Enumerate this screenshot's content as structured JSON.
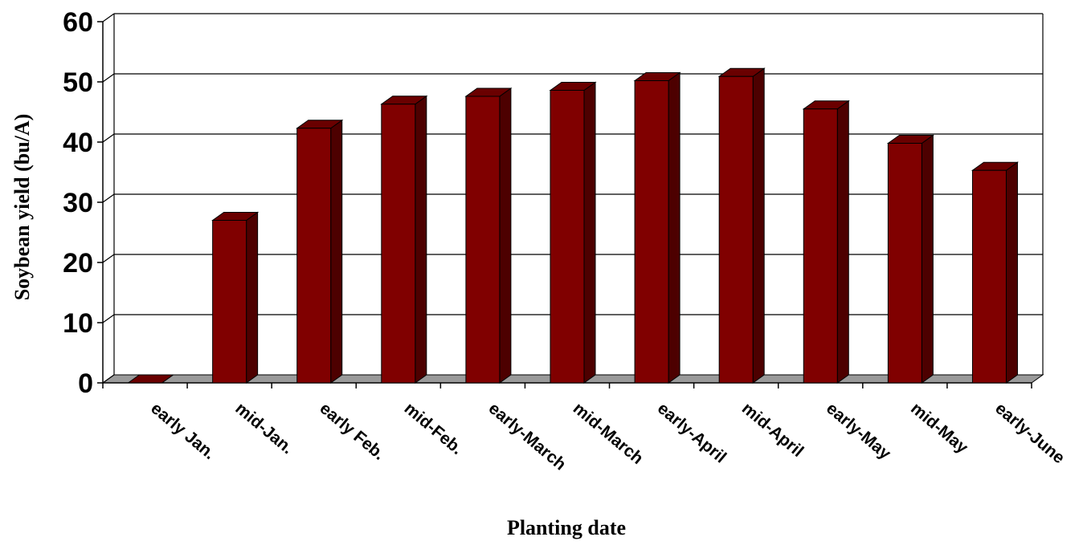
{
  "chart_data": {
    "type": "bar",
    "style": "3d-column",
    "title": "",
    "xlabel": "Planting date",
    "ylabel": "Soybean yield (bu/A)",
    "categories": [
      "early Jan.",
      "mid-Jan.",
      "early Feb.",
      "mid-Feb.",
      "early-March",
      "mid-March",
      "early-April",
      "mid-April",
      "early-May",
      "mid-May",
      "early-June"
    ],
    "values": [
      0,
      27,
      42.3,
      46.3,
      47.6,
      48.6,
      50.2,
      50.9,
      45.5,
      39.8,
      35.3
    ],
    "yticks": [
      0,
      10,
      20,
      30,
      40,
      50,
      60
    ],
    "ylim": [
      0,
      60
    ],
    "grid": true,
    "legend": "none",
    "colors": {
      "bar_front": "#800000",
      "bar_top": "#6a0000",
      "bar_side": "#4d0000",
      "floor": "#9a9a9a",
      "grid": "#000000"
    }
  }
}
